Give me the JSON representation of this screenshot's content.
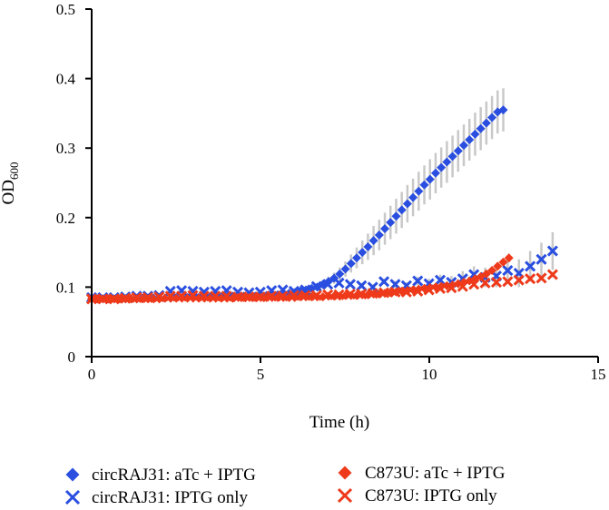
{
  "chart_data": {
    "type": "scatter",
    "title": "",
    "xlabel": "Time (h)",
    "ylabel": "OD",
    "ylabel_subscript": "600",
    "xlim": [
      0,
      15
    ],
    "ylim": [
      0,
      0.5
    ],
    "xticks": [
      0,
      5,
      10,
      15
    ],
    "yticks": [
      0,
      0.1,
      0.2,
      0.3,
      0.4,
      0.5
    ],
    "xtick_labels": [
      "0",
      "5",
      "10",
      "15"
    ],
    "ytick_labels": [
      "0",
      "0.1",
      "0.2",
      "0.3",
      "0.4",
      "0.5"
    ],
    "grid": false,
    "legend_position": "bottom",
    "error_bar_color": "#c8c8c8",
    "series": [
      {
        "name": "circRAJ31: aTc + IPTG",
        "marker": "diamond",
        "color": "#2a4fe0",
        "x_start": 0,
        "x_step": 0.167,
        "values": [
          0.083,
          0.083,
          0.083,
          0.083,
          0.083,
          0.083,
          0.083,
          0.083,
          0.083,
          0.084,
          0.084,
          0.084,
          0.084,
          0.084,
          0.084,
          0.085,
          0.085,
          0.085,
          0.085,
          0.085,
          0.086,
          0.086,
          0.086,
          0.086,
          0.086,
          0.087,
          0.087,
          0.087,
          0.087,
          0.087,
          0.088,
          0.088,
          0.088,
          0.089,
          0.09,
          0.091,
          0.092,
          0.094,
          0.096,
          0.098,
          0.1,
          0.104,
          0.108,
          0.113,
          0.119,
          0.126,
          0.134,
          0.142,
          0.15,
          0.158,
          0.167,
          0.175,
          0.184,
          0.193,
          0.202,
          0.211,
          0.22,
          0.229,
          0.238,
          0.247,
          0.255,
          0.264,
          0.272,
          0.28,
          0.288,
          0.296,
          0.304,
          0.312,
          0.32,
          0.328,
          0.336,
          0.344,
          0.352,
          0.355
        ],
        "errors": [
          0.001,
          0.001,
          0.001,
          0.001,
          0.001,
          0.001,
          0.001,
          0.001,
          0.001,
          0.001,
          0.001,
          0.001,
          0.001,
          0.001,
          0.001,
          0.001,
          0.001,
          0.001,
          0.001,
          0.001,
          0.001,
          0.001,
          0.001,
          0.001,
          0.001,
          0.001,
          0.001,
          0.001,
          0.001,
          0.001,
          0.001,
          0.001,
          0.001,
          0.001,
          0.002,
          0.002,
          0.002,
          0.003,
          0.003,
          0.004,
          0.005,
          0.006,
          0.007,
          0.008,
          0.009,
          0.011,
          0.013,
          0.015,
          0.017,
          0.019,
          0.021,
          0.022,
          0.023,
          0.024,
          0.025,
          0.026,
          0.027,
          0.027,
          0.028,
          0.028,
          0.029,
          0.029,
          0.029,
          0.03,
          0.03,
          0.03,
          0.03,
          0.03,
          0.031,
          0.031,
          0.031,
          0.031,
          0.031,
          0.031
        ]
      },
      {
        "name": "circRAJ31: IPTG only",
        "marker": "x",
        "color": "#2a4fe0",
        "x_start": 0,
        "x_step": 0.333,
        "values": [
          0.085,
          0.085,
          0.085,
          0.086,
          0.087,
          0.087,
          0.088,
          0.094,
          0.095,
          0.094,
          0.093,
          0.094,
          0.095,
          0.093,
          0.092,
          0.093,
          0.095,
          0.096,
          0.094,
          0.096,
          0.101,
          0.104,
          0.106,
          0.104,
          0.102,
          0.1,
          0.108,
          0.104,
          0.102,
          0.109,
          0.105,
          0.11,
          0.107,
          0.112,
          0.118,
          0.114,
          0.116,
          0.124,
          0.12,
          0.13,
          0.14,
          0.152
        ],
        "errors": [
          0.001,
          0.001,
          0.001,
          0.001,
          0.001,
          0.001,
          0.001,
          0.002,
          0.002,
          0.002,
          0.002,
          0.002,
          0.002,
          0.002,
          0.002,
          0.002,
          0.002,
          0.002,
          0.002,
          0.002,
          0.003,
          0.003,
          0.003,
          0.003,
          0.004,
          0.004,
          0.004,
          0.005,
          0.005,
          0.006,
          0.007,
          0.008,
          0.009,
          0.011,
          0.012,
          0.014,
          0.016,
          0.018,
          0.02,
          0.022,
          0.024,
          0.027
        ]
      },
      {
        "name": "C873U: aTc + IPTG",
        "marker": "diamond",
        "color": "#ee3a1a",
        "x_start": 0,
        "x_step": 0.167,
        "values": [
          0.083,
          0.083,
          0.083,
          0.083,
          0.083,
          0.083,
          0.083,
          0.083,
          0.083,
          0.083,
          0.083,
          0.083,
          0.083,
          0.084,
          0.084,
          0.084,
          0.084,
          0.084,
          0.084,
          0.084,
          0.084,
          0.084,
          0.084,
          0.084,
          0.084,
          0.084,
          0.085,
          0.085,
          0.085,
          0.085,
          0.085,
          0.085,
          0.085,
          0.085,
          0.085,
          0.085,
          0.085,
          0.086,
          0.086,
          0.086,
          0.086,
          0.086,
          0.087,
          0.087,
          0.087,
          0.088,
          0.088,
          0.088,
          0.089,
          0.089,
          0.09,
          0.09,
          0.091,
          0.092,
          0.093,
          0.094,
          0.095,
          0.096,
          0.097,
          0.098,
          0.099,
          0.1,
          0.101,
          0.102,
          0.103,
          0.105,
          0.107,
          0.109,
          0.112,
          0.115,
          0.119,
          0.124,
          0.13,
          0.136,
          0.142
        ],
        "errors": [
          0.001,
          0.001,
          0.001,
          0.001,
          0.001,
          0.001,
          0.001,
          0.001,
          0.001,
          0.001,
          0.001,
          0.001,
          0.001,
          0.001,
          0.001,
          0.001,
          0.001,
          0.001,
          0.001,
          0.001,
          0.001,
          0.001,
          0.001,
          0.001,
          0.001,
          0.001,
          0.001,
          0.001,
          0.001,
          0.001,
          0.001,
          0.001,
          0.001,
          0.001,
          0.001,
          0.001,
          0.001,
          0.001,
          0.001,
          0.001,
          0.001,
          0.001,
          0.001,
          0.001,
          0.001,
          0.001,
          0.001,
          0.001,
          0.001,
          0.001,
          0.001,
          0.001,
          0.001,
          0.001,
          0.001,
          0.001,
          0.001,
          0.001,
          0.001,
          0.001,
          0.001,
          0.001,
          0.001,
          0.001,
          0.001,
          0.002,
          0.002,
          0.002,
          0.003,
          0.003,
          0.004,
          0.004,
          0.005,
          0.005,
          0.006
        ]
      },
      {
        "name": "C873U: IPTG only",
        "marker": "x",
        "color": "#ee3a1a",
        "x_start": 0,
        "x_step": 0.333,
        "values": [
          0.083,
          0.083,
          0.083,
          0.084,
          0.085,
          0.085,
          0.086,
          0.087,
          0.087,
          0.088,
          0.087,
          0.087,
          0.087,
          0.086,
          0.086,
          0.086,
          0.087,
          0.087,
          0.088,
          0.088,
          0.088,
          0.089,
          0.089,
          0.09,
          0.09,
          0.091,
          0.092,
          0.093,
          0.093,
          0.094,
          0.096,
          0.098,
          0.099,
          0.101,
          0.104,
          0.106,
          0.107,
          0.108,
          0.11,
          0.112,
          0.113,
          0.118
        ],
        "errors": [
          0.001,
          0.001,
          0.001,
          0.001,
          0.001,
          0.001,
          0.001,
          0.001,
          0.001,
          0.001,
          0.001,
          0.001,
          0.001,
          0.001,
          0.001,
          0.001,
          0.001,
          0.001,
          0.001,
          0.001,
          0.001,
          0.001,
          0.001,
          0.001,
          0.001,
          0.001,
          0.001,
          0.001,
          0.001,
          0.001,
          0.002,
          0.002,
          0.002,
          0.002,
          0.002,
          0.003,
          0.003,
          0.003,
          0.003,
          0.004,
          0.004,
          0.004
        ]
      }
    ]
  }
}
